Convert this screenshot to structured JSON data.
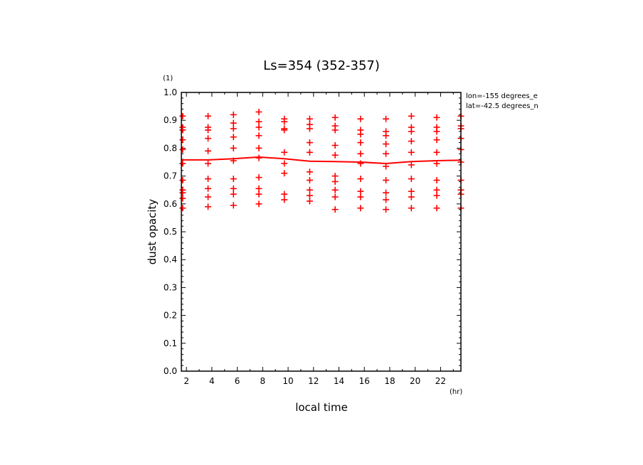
{
  "chart_data": {
    "type": "scatter",
    "title": "Ls=354 (352-357)",
    "xlabel": "local time",
    "ylabel": "dust opacity",
    "x_unit": "(hr)",
    "y_unit": "(1)",
    "xlim": [
      1.6,
      23.6
    ],
    "ylim": [
      0,
      1.0
    ],
    "x_ticks": [
      2,
      4,
      6,
      8,
      10,
      12,
      14,
      16,
      18,
      20,
      22
    ],
    "y_ticks": [
      0.0,
      0.1,
      0.2,
      0.3,
      0.4,
      0.5,
      0.6,
      0.7,
      0.8,
      0.9,
      1.0
    ],
    "annotations": [
      "lon=-155 degrees_e",
      "lat=-42.5 degrees_n"
    ],
    "grid": false,
    "color": "#ff0000",
    "series": [
      {
        "kind": "points",
        "points": [
          {
            "x": 1.7,
            "y": [
              0.915,
              0.875,
              0.865,
              0.83,
              0.795,
              0.745,
              0.685,
              0.65,
              0.64,
              0.62,
              0.585
            ]
          },
          {
            "x": 3.7,
            "y": [
              0.915,
              0.875,
              0.865,
              0.835,
              0.79,
              0.745,
              0.69,
              0.655,
              0.625,
              0.59
            ]
          },
          {
            "x": 5.7,
            "y": [
              0.92,
              0.89,
              0.87,
              0.84,
              0.8,
              0.755,
              0.69,
              0.655,
              0.635,
              0.595
            ]
          },
          {
            "x": 7.7,
            "y": [
              0.93,
              0.895,
              0.875,
              0.845,
              0.8,
              0.765,
              0.695,
              0.655,
              0.635,
              0.6
            ]
          },
          {
            "x": 9.7,
            "y": [
              0.905,
              0.895,
              0.87,
              0.865,
              0.785,
              0.745,
              0.71,
              0.635,
              0.615
            ]
          },
          {
            "x": 11.7,
            "y": [
              0.905,
              0.885,
              0.87,
              0.82,
              0.785,
              0.715,
              0.685,
              0.65,
              0.63,
              0.61
            ]
          },
          {
            "x": 13.7,
            "y": [
              0.91,
              0.88,
              0.865,
              0.81,
              0.775,
              0.7,
              0.68,
              0.65,
              0.625,
              0.58
            ]
          },
          {
            "x": 15.7,
            "y": [
              0.905,
              0.865,
              0.85,
              0.82,
              0.78,
              0.745,
              0.69,
              0.645,
              0.625,
              0.585
            ]
          },
          {
            "x": 17.7,
            "y": [
              0.905,
              0.86,
              0.845,
              0.815,
              0.78,
              0.735,
              0.685,
              0.64,
              0.615,
              0.58
            ]
          },
          {
            "x": 19.7,
            "y": [
              0.915,
              0.875,
              0.86,
              0.825,
              0.785,
              0.74,
              0.69,
              0.645,
              0.625,
              0.585
            ]
          },
          {
            "x": 21.7,
            "y": [
              0.91,
              0.875,
              0.86,
              0.83,
              0.785,
              0.745,
              0.685,
              0.65,
              0.63,
              0.585
            ]
          },
          {
            "x": 23.6,
            "y": [
              0.915,
              0.88,
              0.87,
              0.835,
              0.795,
              0.75,
              0.685,
              0.65,
              0.635,
              0.585
            ]
          }
        ]
      },
      {
        "kind": "line",
        "x": [
          1.6,
          3.7,
          5.7,
          7.7,
          9.7,
          11.7,
          13.7,
          15.7,
          17.7,
          19.7,
          21.7,
          23.6
        ],
        "y": [
          0.758,
          0.758,
          0.762,
          0.768,
          0.762,
          0.753,
          0.752,
          0.75,
          0.745,
          0.752,
          0.755,
          0.757
        ]
      }
    ]
  }
}
